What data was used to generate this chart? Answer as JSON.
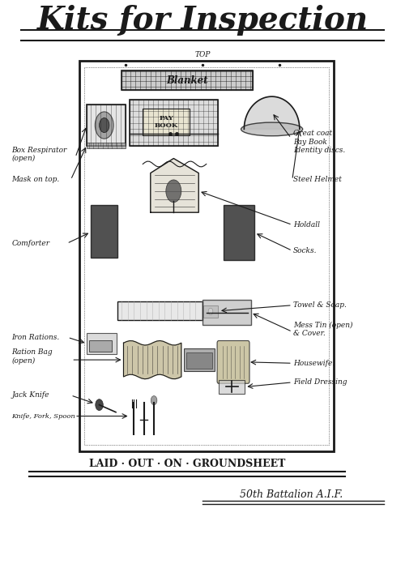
{
  "title": "Kits for Inspection",
  "bg_color": "#f5f2ea",
  "paper_color": "#f0ede0",
  "ink_color": "#1a1a1a",
  "title_fontsize": 28,
  "subtitle_bottom": "LAID · OUT · ON · GROUNDSHEET",
  "signature": "50th Battalion A.I.F.",
  "top_label": "TOP"
}
